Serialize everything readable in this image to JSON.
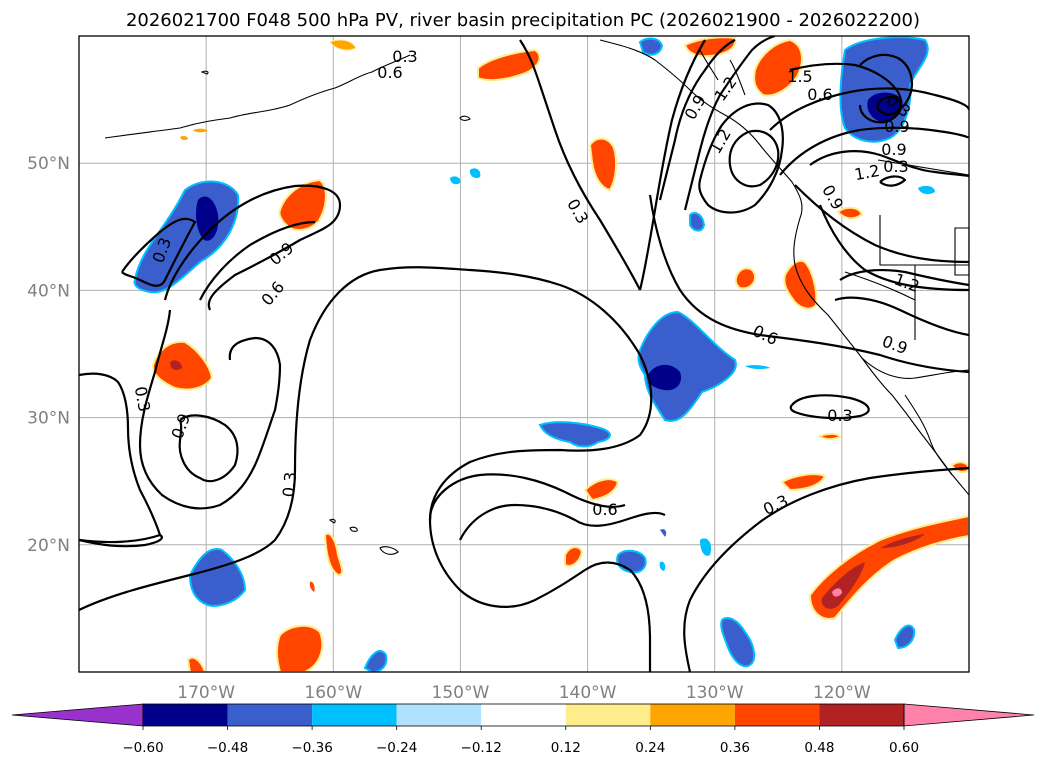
{
  "chart_data": {
    "type": "contour-map",
    "title": "2026021700 F048 500 hPa PV, river basin precipitation PC (2026021900 - 2026022200)",
    "lon_ticks": [
      {
        "value": -170,
        "label": "170°W"
      },
      {
        "value": -160,
        "label": "160°W"
      },
      {
        "value": -150,
        "label": "150°W"
      },
      {
        "value": -140,
        "label": "140°W"
      },
      {
        "value": -130,
        "label": "130°W"
      },
      {
        "value": -120,
        "label": "120°W"
      }
    ],
    "lat_ticks": [
      {
        "value": 50,
        "label": "50°N"
      },
      {
        "value": 40,
        "label": "40°N"
      },
      {
        "value": 30,
        "label": "30°N"
      },
      {
        "value": 20,
        "label": "20°N"
      }
    ],
    "lon_range": [
      -180,
      -110
    ],
    "lat_range": [
      10,
      60
    ],
    "contour_labels": [
      "0.3",
      "0.6",
      "0.9",
      "1.2",
      "1.5",
      "0.6",
      "0.3",
      "0.9",
      "0.3",
      "0.6",
      "0.9",
      "0.3",
      "0.3",
      "0.6",
      "0.3",
      "0.9",
      "1.2",
      "0.9",
      "0.3",
      "0.3",
      "0.9",
      "1.2",
      "1.2",
      "0.6",
      "0.9",
      "0.3"
    ],
    "colorbar": {
      "levels": [
        "−0.60",
        "−0.48",
        "−0.36",
        "−0.24",
        "−0.12",
        "0.12",
        "0.24",
        "0.36",
        "0.48",
        "0.60"
      ],
      "colors": [
        "#9932cc",
        "#00008b",
        "#3a5fcd",
        "#00bfff",
        "#b0e2ff",
        "#ffffff",
        "#ffec8b",
        "#ffa500",
        "#ff4500",
        "#b22222",
        "#ff82ab"
      ]
    }
  }
}
